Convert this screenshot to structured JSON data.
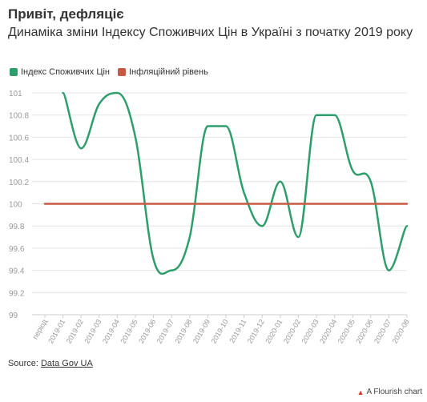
{
  "header": {
    "title": "Привіт, дефляціє",
    "subtitle": "Динаміка зміни Індексу Споживчих Цін в Україні з початку 2019 року"
  },
  "footer": {
    "source_label": "Source:",
    "source_link": "Data Gov UA",
    "credit": "A Flourish chart"
  },
  "colors": {
    "cpi": "#2e9e6b",
    "inflation": "#c85a44",
    "grid": "#e4e4e4",
    "tick_text": "#999999"
  },
  "chart_data": {
    "type": "line",
    "categories": [
      "період",
      "2019-01",
      "2019-02",
      "2019-03",
      "2019-04",
      "2019-05",
      "2019-06",
      "2019-07",
      "2019-08",
      "2019-09",
      "2019-10",
      "2019-11",
      "2019-12",
      "2020-01",
      "2020-02",
      "2020-03",
      "2020-04",
      "2020-05",
      "2020-06",
      "2020-07",
      "2020-08"
    ],
    "series": [
      {
        "name": "Індекс Споживчих Цін",
        "color": "#2e9e6b",
        "values": [
          null,
          101.0,
          100.5,
          100.9,
          101.0,
          100.6,
          99.5,
          99.4,
          99.7,
          100.7,
          100.7,
          100.1,
          99.8,
          100.2,
          99.7,
          100.8,
          100.8,
          100.3,
          100.2,
          99.4,
          99.8
        ]
      },
      {
        "name": "Інфляційний рівень",
        "color": "#c85a44",
        "values": [
          100,
          100,
          100,
          100,
          100,
          100,
          100,
          100,
          100,
          100,
          100,
          100,
          100,
          100,
          100,
          100,
          100,
          100,
          100,
          100,
          100
        ]
      }
    ],
    "ylim": [
      99,
      101
    ],
    "yticks": [
      "99",
      "99.2",
      "99.4",
      "99.6",
      "99.8",
      "100",
      "100.2",
      "100.4",
      "100.6",
      "100.8",
      "101"
    ],
    "grid": true,
    "legend": "top-left"
  }
}
